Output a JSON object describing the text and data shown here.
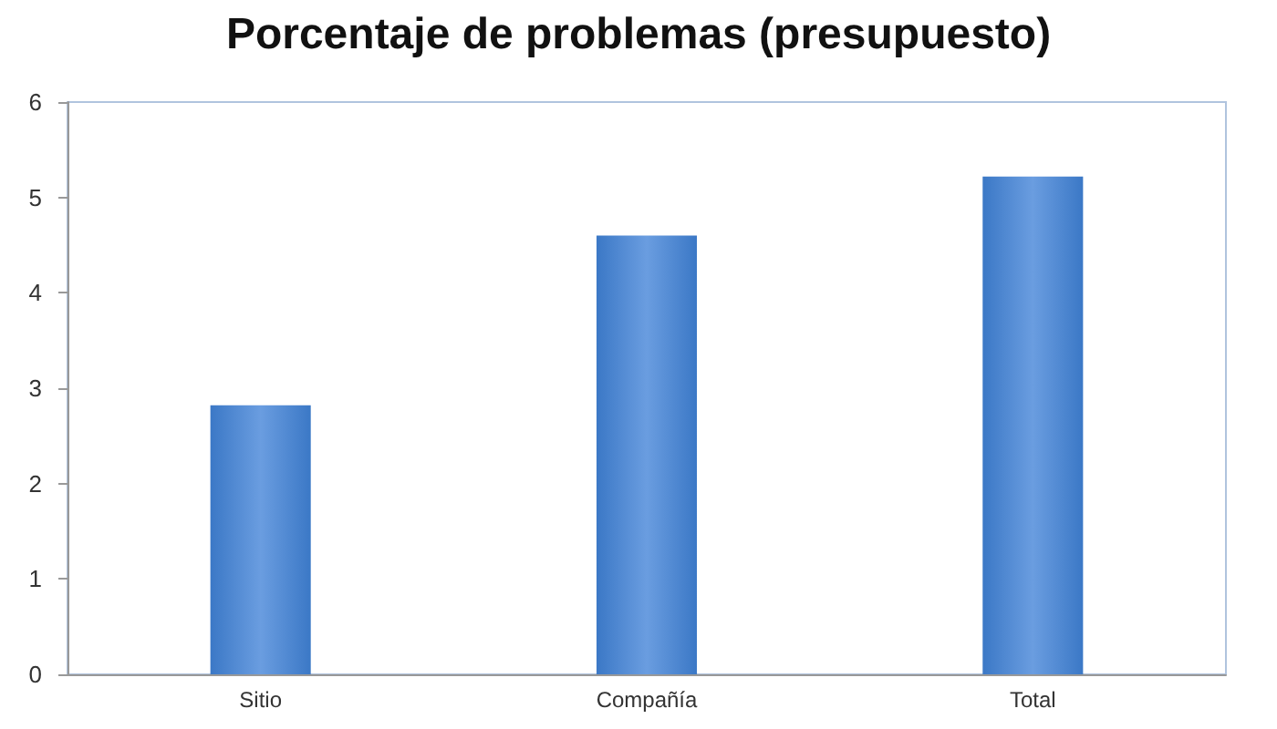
{
  "chart_data": {
    "type": "bar",
    "title": "Porcentaje de problemas (presupuesto)",
    "categories": [
      "Sitio",
      "Compañía",
      "Total"
    ],
    "values": [
      2.82,
      4.6,
      5.22
    ],
    "color": "#3b78c6",
    "ylim": [
      0,
      6
    ],
    "yticks": [
      0,
      1,
      2,
      3,
      4,
      5,
      6
    ],
    "grid": false
  }
}
